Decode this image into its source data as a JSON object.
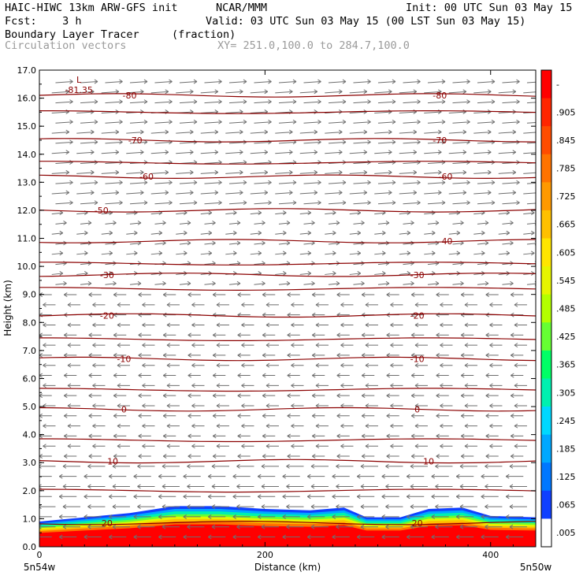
{
  "header": {
    "model": "HAIC-HIWC 13km ARW-GFS init",
    "org": "NCAR/MMM",
    "init": "Init: 00 UTC Sun 03 May 15",
    "fcst": "Fcst:    3 h",
    "valid": "Valid: 03 UTC Sun 03 May 15 (00 LST Sun 03 May 15)",
    "field": "Boundary Layer Tracer",
    "units": "(fraction)",
    "vectors": "Circulation vectors",
    "xy": "XY= 251.0,100.0 to 284.7,100.0"
  },
  "chart_data": {
    "type": "heatmap",
    "title": "Boundary Layer Tracer",
    "xlabel": "Distance (km)",
    "ylabel": "Height (km)",
    "xlim": [
      0,
      440
    ],
    "ylim": [
      0,
      17
    ],
    "x_ticks": [
      0,
      200,
      400
    ],
    "x_tick_labels": [
      "0",
      "200",
      "400"
    ],
    "y_ticks": [
      0,
      1,
      2,
      3,
      4,
      5,
      6,
      7,
      8,
      9,
      10,
      11,
      12,
      13,
      14,
      15,
      16,
      17
    ],
    "y_tick_labels": [
      "0.0",
      "1.0",
      "2.0",
      "3.0",
      "4.0",
      "5.0",
      "6.0",
      "7.0",
      "8.0",
      "9.0",
      "10.0",
      "11.0",
      "12.0",
      "13.0",
      "14.0",
      "15.0",
      "16.0",
      "17.0"
    ],
    "x_endpoint_labels": [
      "5n54w",
      "5n50w"
    ],
    "grid": false,
    "colorbar": {
      "labels": [
        "-",
        ".905",
        ".845",
        ".785",
        ".725",
        ".665",
        ".605",
        ".545",
        ".485",
        ".425",
        ".365",
        ".305",
        ".245",
        ".185",
        ".125",
        ".065",
        ".005"
      ],
      "colors": [
        "#ff0000",
        "#ff2600",
        "#ff4c00",
        "#ff7300",
        "#ff9900",
        "#ffc000",
        "#ffe500",
        "#e6f500",
        "#b3ff00",
        "#66ff33",
        "#00ff66",
        "#00f0b0",
        "#00d8ff",
        "#00a8ff",
        "#0077ff",
        "#1040ff",
        "#ffffff"
      ]
    },
    "contours": [
      {
        "label": "-80",
        "height": 16.1,
        "label_x": [
          80,
          355
        ]
      },
      {
        "label": "-70",
        "height": 14.5,
        "label_x": [
          85,
          355
        ]
      },
      {
        "label": "-60",
        "height": 13.2,
        "label_x": [
          95,
          360
        ]
      },
      {
        "label": "-50",
        "height": 12.0,
        "label_x": [
          55,
          null
        ]
      },
      {
        "label": "-40",
        "height": 10.9,
        "label_x": [
          null,
          360
        ]
      },
      {
        "label": "-30",
        "height": 9.7,
        "label_x": [
          60,
          335
        ]
      },
      {
        "label": "-20",
        "height": 8.25,
        "label_x": [
          60,
          335
        ]
      },
      {
        "label": "-10",
        "height": 6.7,
        "label_x": [
          75,
          335
        ]
      },
      {
        "label": "0",
        "height": 4.9,
        "label_x": [
          75,
          335
        ]
      },
      {
        "label": "10",
        "height": 3.05,
        "label_x": [
          65,
          345
        ]
      },
      {
        "label": "20",
        "height": 0.85,
        "label_x": [
          60,
          335
        ]
      }
    ],
    "min_label": {
      "text": "L",
      "value": "-81.35",
      "x": 35,
      "height": 16.55
    },
    "tracer_layer": [
      {
        "x": 0,
        "top": 0.9
      },
      {
        "x": 40,
        "top": 1.05
      },
      {
        "x": 80,
        "top": 1.2
      },
      {
        "x": 120,
        "top": 1.45
      },
      {
        "x": 160,
        "top": 1.45
      },
      {
        "x": 200,
        "top": 1.35
      },
      {
        "x": 240,
        "top": 1.3
      },
      {
        "x": 270,
        "top": 1.4
      },
      {
        "x": 290,
        "top": 1.05
      },
      {
        "x": 320,
        "top": 1.05
      },
      {
        "x": 345,
        "top": 1.35
      },
      {
        "x": 375,
        "top": 1.4
      },
      {
        "x": 400,
        "top": 1.1
      },
      {
        "x": 440,
        "top": 1.05
      }
    ]
  }
}
